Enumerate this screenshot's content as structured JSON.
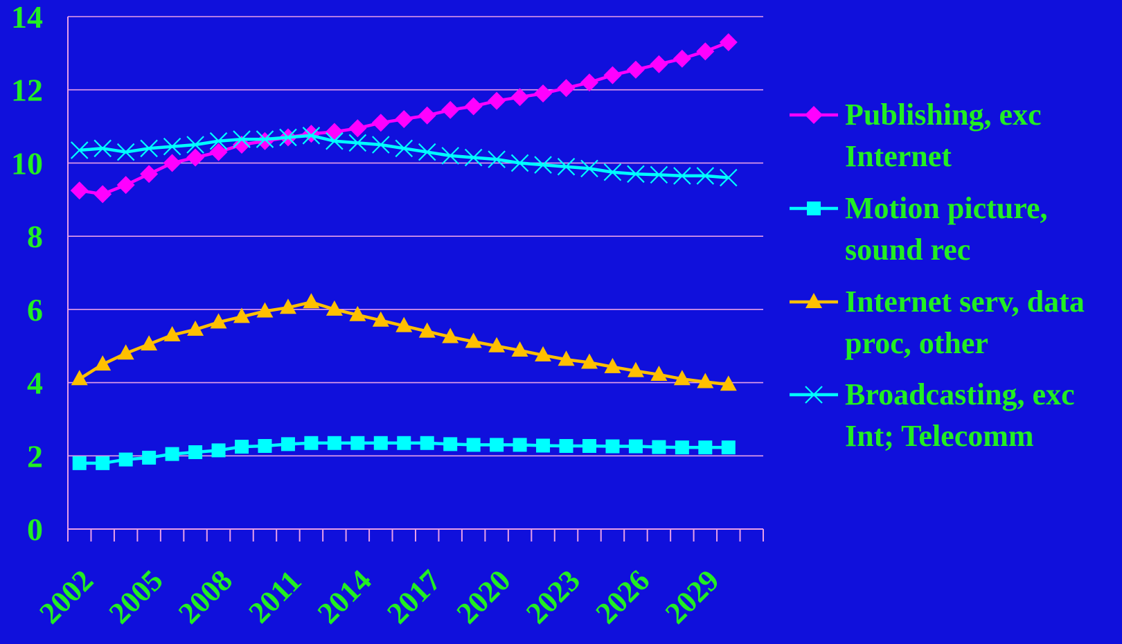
{
  "colors": {
    "background": "#1010dc",
    "text": "#22ee22",
    "axis": "#e8a0e8",
    "grid": "#e8a0e8"
  },
  "chart_data": {
    "type": "line",
    "title": "",
    "xlabel": "",
    "ylabel": "",
    "ylim": [
      0,
      14
    ],
    "yticks": [
      0,
      2,
      4,
      6,
      8,
      10,
      12,
      14
    ],
    "xlim": [
      2002,
      2031
    ],
    "x": [
      2002,
      2003,
      2004,
      2005,
      2006,
      2007,
      2008,
      2009,
      2010,
      2011,
      2012,
      2013,
      2014,
      2015,
      2016,
      2017,
      2018,
      2019,
      2020,
      2021,
      2022,
      2023,
      2024,
      2025,
      2026,
      2027,
      2028,
      2029,
      2030,
      2031
    ],
    "xticks": [
      "2002",
      "2005",
      "2008",
      "2011",
      "2014",
      "2017",
      "2020",
      "2023",
      "2026",
      "2029"
    ],
    "grid": true,
    "legend": "right",
    "series": [
      {
        "name": "Publishing, exc Internet",
        "legend_lines": [
          "Publishing, exc",
          "Internet"
        ],
        "color": "#ff00ff",
        "marker": "diamond",
        "values": [
          9.25,
          9.15,
          9.4,
          9.7,
          10.0,
          10.15,
          10.3,
          10.5,
          10.6,
          10.7,
          10.8,
          10.85,
          10.95,
          11.1,
          11.2,
          11.3,
          11.45,
          11.55,
          11.7,
          11.8,
          11.9,
          12.05,
          12.2,
          12.4,
          12.55,
          12.7,
          12.85,
          13.05,
          13.3,
          null
        ]
      },
      {
        "name": "Motion picture, sound rec",
        "legend_lines": [
          "Motion picture,",
          "sound rec"
        ],
        "color": "#00ffff",
        "marker": "square",
        "values": [
          1.8,
          1.8,
          1.9,
          1.95,
          2.05,
          2.1,
          2.15,
          2.25,
          2.27,
          2.32,
          2.35,
          2.35,
          2.35,
          2.35,
          2.35,
          2.35,
          2.32,
          2.3,
          2.3,
          2.3,
          2.28,
          2.27,
          2.27,
          2.26,
          2.26,
          2.24,
          2.23,
          2.23,
          2.23,
          null
        ]
      },
      {
        "name": "Internet serv, data proc, other",
        "legend_lines": [
          "Internet serv, data",
          "proc, other"
        ],
        "color": "#ffc000",
        "marker": "triangle",
        "values": [
          4.1,
          4.5,
          4.8,
          5.05,
          5.3,
          5.45,
          5.65,
          5.8,
          5.95,
          6.05,
          6.2,
          6.0,
          5.85,
          5.7,
          5.55,
          5.4,
          5.25,
          5.12,
          5.0,
          4.88,
          4.75,
          4.63,
          4.55,
          4.43,
          4.32,
          4.22,
          4.1,
          4.02,
          3.95,
          null
        ]
      },
      {
        "name": "Broadcasting, exc Int; Telecomm",
        "legend_lines": [
          "Broadcasting, exc",
          "Int; Telecomm"
        ],
        "color": "#00ffff",
        "marker": "x",
        "values": [
          10.35,
          10.4,
          10.3,
          10.4,
          10.45,
          10.5,
          10.6,
          10.65,
          10.65,
          10.7,
          10.75,
          10.6,
          10.55,
          10.5,
          10.4,
          10.3,
          10.2,
          10.15,
          10.1,
          10.0,
          9.95,
          9.9,
          9.85,
          9.75,
          9.7,
          9.68,
          9.65,
          9.65,
          9.6,
          null
        ]
      }
    ]
  }
}
